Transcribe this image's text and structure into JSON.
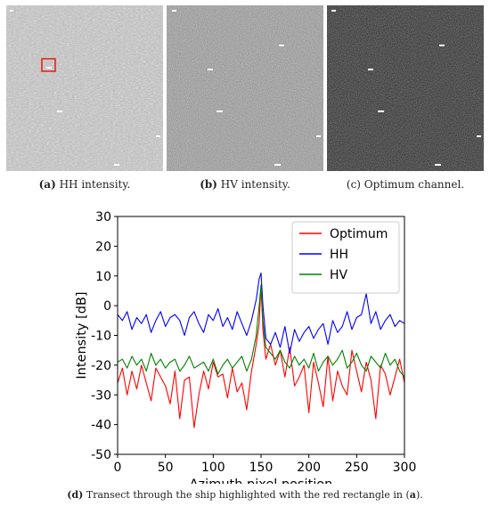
{
  "subfigures": [
    {
      "letter": "(a)",
      "text": " HH intensity."
    },
    {
      "letter": "(b)",
      "text": " HV intensity."
    },
    {
      "letter": "(c)",
      "text": " Optimum channel."
    }
  ],
  "caption_d": {
    "letter": "(d)",
    "pre": " Transect through the ship highlighted with the red rectangle in (",
    "ref": "a",
    "post": ")."
  },
  "colors": {
    "optimum": "#ff0000",
    "hh": "#0000ff",
    "hv": "#008000",
    "highlight_box": "#e8231f"
  },
  "chart_data": {
    "type": "line",
    "xlabel": "Azimuth pixel position",
    "ylabel": "Intensity [dB]",
    "xlim": [
      0,
      300
    ],
    "ylim": [
      -50,
      30
    ],
    "xticks": [
      0,
      50,
      100,
      150,
      200,
      250,
      300
    ],
    "yticks": [
      -50,
      -40,
      -30,
      -20,
      -10,
      0,
      10,
      20,
      30
    ],
    "grid": false,
    "legend_position": "top-right",
    "x": [
      0,
      5,
      10,
      15,
      20,
      25,
      30,
      35,
      40,
      45,
      50,
      55,
      60,
      65,
      70,
      75,
      80,
      85,
      90,
      95,
      100,
      105,
      110,
      115,
      120,
      125,
      130,
      135,
      140,
      145,
      148,
      150,
      152,
      155,
      160,
      165,
      170,
      175,
      180,
      185,
      190,
      195,
      200,
      205,
      210,
      215,
      220,
      225,
      230,
      235,
      240,
      245,
      250,
      255,
      260,
      265,
      270,
      275,
      280,
      285,
      290,
      295,
      300
    ],
    "series": [
      {
        "name": "Optimum",
        "color": "#ff0000",
        "values": [
          -26,
          -21,
          -30,
          -22,
          -28,
          -20,
          -26,
          -32,
          -21,
          -24,
          -27,
          -33,
          -22,
          -38,
          -25,
          -24,
          -41,
          -30,
          -22,
          -28,
          -19,
          -24,
          -23,
          -31,
          -21,
          -29,
          -26,
          -35,
          -22,
          -13,
          -6,
          7,
          -8,
          -18,
          -13,
          -20,
          -15,
          -24,
          -14,
          -27,
          -24,
          -20,
          -36,
          -19,
          -26,
          -34,
          -17,
          -32,
          -22,
          -27,
          -30,
          -15,
          -22,
          -29,
          -19,
          -25,
          -38,
          -20,
          -23,
          -30,
          -24,
          -18,
          -26
        ]
      },
      {
        "name": "HH",
        "color": "#0000ff",
        "values": [
          -3,
          -5,
          -2,
          -8,
          -4,
          -6,
          -3,
          -9,
          -5,
          -2,
          -7,
          -4,
          -3,
          -5,
          -10,
          -4,
          -2,
          -6,
          -9,
          -3,
          -5,
          -1,
          -7,
          -4,
          -8,
          -2,
          -6,
          -10,
          -5,
          2,
          9,
          11,
          0,
          -11,
          -13,
          -9,
          -14,
          -7,
          -16,
          -8,
          -12,
          -9,
          -7,
          -11,
          -8,
          -6,
          -13,
          -5,
          -9,
          -7,
          -2,
          -8,
          -4,
          -3,
          4,
          -6,
          -2,
          -8,
          -5,
          -3,
          -7,
          -5,
          -6
        ]
      },
      {
        "name": "HV",
        "color": "#008000",
        "values": [
          -19,
          -18,
          -21,
          -17,
          -20,
          -18,
          -22,
          -16,
          -20,
          -18,
          -21,
          -19,
          -18,
          -22,
          -20,
          -17,
          -21,
          -20,
          -19,
          -22,
          -18,
          -23,
          -20,
          -18,
          -21,
          -19,
          -17,
          -22,
          -18,
          -10,
          0,
          7,
          -5,
          -14,
          -16,
          -18,
          -15,
          -19,
          -21,
          -17,
          -20,
          -18,
          -21,
          -16,
          -22,
          -19,
          -17,
          -20,
          -18,
          -15,
          -21,
          -19,
          -16,
          -20,
          -22,
          -17,
          -19,
          -21,
          -16,
          -20,
          -18,
          -22,
          -24
        ]
      }
    ]
  }
}
